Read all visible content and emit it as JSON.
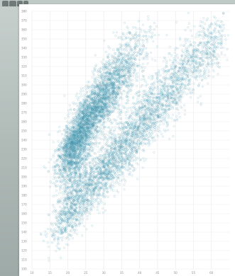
{
  "window": {
    "tab_icons": [
      "document-icon",
      "document-icon",
      "document-icon",
      "document-icon"
    ]
  },
  "colors": {
    "point": "#3a8fa8",
    "grid": "#eaeaea",
    "background": "#ffffff",
    "tick_text": "#8c8c8c"
  },
  "chart_data": {
    "type": "scatter",
    "title": "",
    "xlabel": "",
    "ylabel": "",
    "xlim": [
      10,
      65
    ],
    "ylim": [
      100,
      380
    ],
    "x_ticks": [
      10,
      15,
      20,
      25,
      30,
      35,
      40,
      45,
      50,
      55,
      60
    ],
    "y_ticks": [
      100,
      110,
      120,
      130,
      140,
      150,
      160,
      170,
      180,
      190,
      200,
      210,
      220,
      230,
      240,
      250,
      260,
      270,
      280,
      290,
      300,
      310,
      320,
      330,
      340,
      350,
      360,
      370,
      380
    ],
    "grid": true,
    "legend": "none",
    "series": [
      {
        "values_description": "dense upper cluster",
        "density_centers": [
          {
            "x": 21,
            "y": 232,
            "sx": 2.2,
            "sy": 12,
            "n": 900
          },
          {
            "x": 25,
            "y": 258,
            "sx": 3.0,
            "sy": 16,
            "n": 1300
          },
          {
            "x": 29,
            "y": 282,
            "sx": 3.2,
            "sy": 17,
            "n": 900
          },
          {
            "x": 33,
            "y": 305,
            "sx": 3.4,
            "sy": 18,
            "n": 600
          },
          {
            "x": 37,
            "y": 322,
            "sx": 3.5,
            "sy": 18,
            "n": 350
          },
          {
            "x": 22,
            "y": 210,
            "sx": 2.4,
            "sy": 12,
            "n": 400
          }
        ]
      },
      {
        "values_description": "lower diagonal band",
        "density_centers": [
          {
            "x": 20,
            "y": 160,
            "sx": 2.5,
            "sy": 14,
            "n": 450
          },
          {
            "x": 25,
            "y": 185,
            "sx": 3.0,
            "sy": 15,
            "n": 550
          },
          {
            "x": 31,
            "y": 210,
            "sx": 3.2,
            "sy": 16,
            "n": 650
          },
          {
            "x": 37,
            "y": 240,
            "sx": 3.3,
            "sy": 17,
            "n": 650
          },
          {
            "x": 43,
            "y": 268,
            "sx": 3.4,
            "sy": 18,
            "n": 550
          },
          {
            "x": 49,
            "y": 298,
            "sx": 3.5,
            "sy": 18,
            "n": 450
          },
          {
            "x": 55,
            "y": 325,
            "sx": 3.4,
            "sy": 18,
            "n": 350
          },
          {
            "x": 60,
            "y": 338,
            "sx": 2.5,
            "sy": 15,
            "n": 200
          }
        ]
      }
    ]
  }
}
